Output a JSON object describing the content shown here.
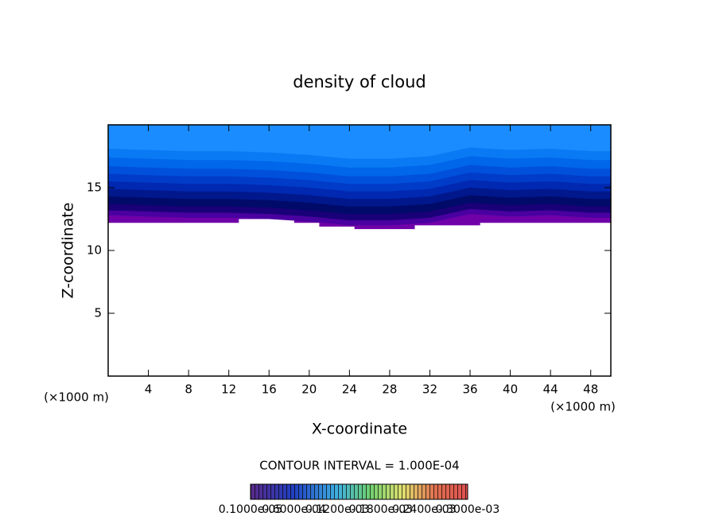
{
  "chart_data": {
    "type": "contour",
    "title": "density of cloud",
    "x_label": "X-coordinate",
    "y_label": "Z-coordinate",
    "x_unit_left": "(×1000 m)",
    "x_unit_right": "(×1000 m)",
    "contour_interval": "CONTOUR INTERVAL = 1.000E-04",
    "colorbar_labels": [
      "0.1000e-05",
      "0.6000e-04",
      "0.1200e-03",
      "0.1800e-03",
      "0.2400e-03",
      "0.3000e-03"
    ],
    "xlim": [
      0,
      50
    ],
    "ylim": [
      0,
      20
    ],
    "xticks": [
      4,
      8,
      12,
      16,
      20,
      24,
      28,
      32,
      36,
      40,
      44,
      48
    ],
    "yticks": [
      5,
      10,
      15
    ],
    "base": {
      "color": "#7000a8",
      "x": [
        0,
        13,
        13,
        18.5,
        18.5,
        21,
        21,
        24.5,
        24.5,
        30.5,
        30.5,
        37,
        37,
        50
      ],
      "z": [
        12.2,
        12.2,
        12.5,
        12.5,
        12.2,
        12.2,
        11.9,
        11.9,
        11.7,
        11.7,
        12.0,
        12.0,
        12.2,
        12.2
      ]
    },
    "band_x": [
      0,
      4,
      8,
      12,
      16,
      20,
      24,
      28,
      32,
      36,
      40,
      44,
      48,
      50
    ],
    "bands": [
      {
        "color": "#4a00a0",
        "z": [
          12.8,
          12.7,
          12.6,
          12.6,
          12.5,
          12.3,
          12.0,
          12.0,
          12.2,
          12.9,
          12.7,
          12.8,
          12.6,
          12.6
        ]
      },
      {
        "color": "#1a0078",
        "z": [
          13.2,
          13.1,
          13.0,
          13.0,
          12.9,
          12.7,
          12.4,
          12.4,
          12.6,
          13.3,
          13.1,
          13.2,
          13.0,
          13.0
        ]
      },
      {
        "color": "#000a68",
        "z": [
          13.7,
          13.6,
          13.5,
          13.5,
          13.4,
          13.2,
          12.9,
          12.9,
          13.1,
          13.8,
          13.6,
          13.7,
          13.5,
          13.5
        ]
      },
      {
        "color": "#00188c",
        "z": [
          14.3,
          14.2,
          14.1,
          14.1,
          14.0,
          13.8,
          13.5,
          13.5,
          13.7,
          14.4,
          14.2,
          14.3,
          14.1,
          14.1
        ]
      },
      {
        "color": "#0028b0",
        "z": [
          14.9,
          14.8,
          14.7,
          14.7,
          14.6,
          14.4,
          14.1,
          14.1,
          14.3,
          15.0,
          14.8,
          14.9,
          14.7,
          14.7
        ]
      },
      {
        "color": "#003cc8",
        "z": [
          15.5,
          15.4,
          15.3,
          15.3,
          15.2,
          15.0,
          14.7,
          14.7,
          14.9,
          15.6,
          15.4,
          15.5,
          15.3,
          15.3
        ]
      },
      {
        "color": "#0050dc",
        "z": [
          16.1,
          16.0,
          15.9,
          15.9,
          15.8,
          15.6,
          15.3,
          15.3,
          15.5,
          16.2,
          16.0,
          16.1,
          15.9,
          15.9
        ]
      },
      {
        "color": "#0066ea",
        "z": [
          16.7,
          16.6,
          16.5,
          16.5,
          16.4,
          16.2,
          15.9,
          15.9,
          16.1,
          16.8,
          16.6,
          16.7,
          16.5,
          16.5
        ]
      },
      {
        "color": "#0a7af4",
        "z": [
          17.4,
          17.3,
          17.2,
          17.2,
          17.1,
          16.9,
          16.6,
          16.6,
          16.8,
          17.5,
          17.3,
          17.4,
          17.2,
          17.2
        ]
      },
      {
        "color": "#1a8cff",
        "z": [
          18.1,
          18.0,
          17.9,
          17.9,
          17.8,
          17.6,
          17.3,
          17.3,
          17.5,
          18.2,
          18.0,
          18.1,
          17.9,
          17.9
        ]
      }
    ]
  }
}
